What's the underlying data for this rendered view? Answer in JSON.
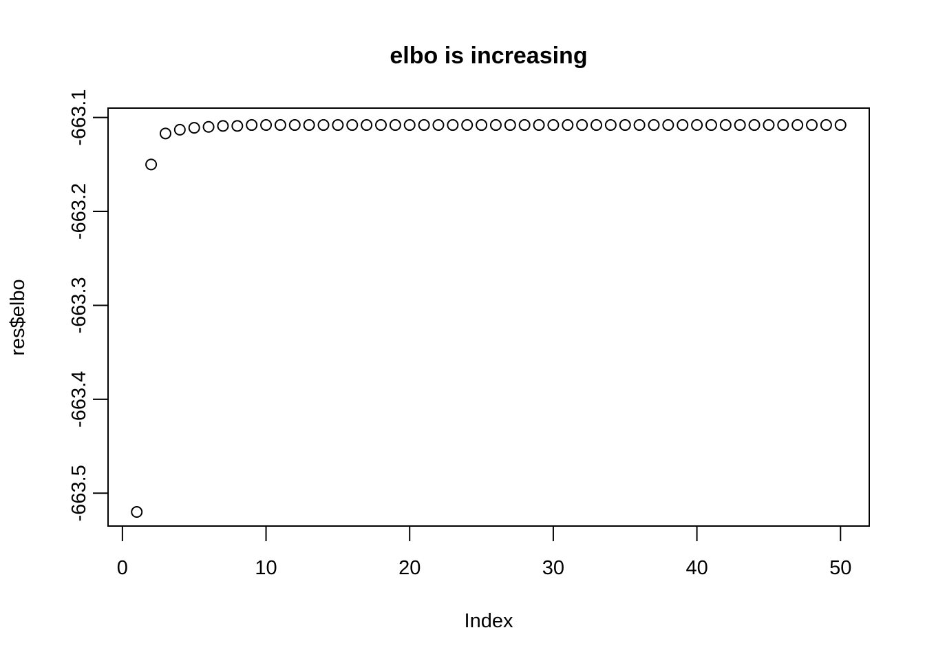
{
  "chart_data": {
    "type": "scatter",
    "title": "elbo is increasing",
    "xlabel": "Index",
    "ylabel": "res$elbo",
    "xlim": [
      -1,
      52
    ],
    "ylim": [
      -663.535,
      -663.09
    ],
    "x_ticks": [
      0,
      10,
      20,
      30,
      40,
      50
    ],
    "x_tick_labels": [
      "0",
      "10",
      "20",
      "30",
      "40",
      "50"
    ],
    "y_ticks": [
      -663.5,
      -663.4,
      -663.3,
      -663.2,
      -663.1
    ],
    "y_tick_labels": [
      "-663.5",
      "-663.4",
      "-663.3",
      "-663.2",
      "-663.1"
    ],
    "grid": false,
    "series": [
      {
        "marker": "open-circle",
        "color": "#000000",
        "x": [
          1,
          2,
          3,
          4,
          5,
          6,
          7,
          8,
          9,
          10,
          11,
          12,
          13,
          14,
          15,
          16,
          17,
          18,
          19,
          20,
          21,
          22,
          23,
          24,
          25,
          26,
          27,
          28,
          29,
          30,
          31,
          32,
          33,
          34,
          35,
          36,
          37,
          38,
          39,
          40,
          41,
          42,
          43,
          44,
          45,
          46,
          47,
          48,
          49,
          50
        ],
        "y": [
          -663.52,
          -663.15,
          -663.117,
          -663.113,
          -663.111,
          -663.11,
          -663.109,
          -663.109,
          -663.108,
          -663.108,
          -663.108,
          -663.108,
          -663.108,
          -663.108,
          -663.108,
          -663.108,
          -663.108,
          -663.108,
          -663.108,
          -663.108,
          -663.108,
          -663.108,
          -663.108,
          -663.108,
          -663.108,
          -663.108,
          -663.108,
          -663.108,
          -663.108,
          -663.108,
          -663.108,
          -663.108,
          -663.108,
          -663.108,
          -663.108,
          -663.108,
          -663.108,
          -663.108,
          -663.108,
          -663.108,
          -663.108,
          -663.108,
          -663.108,
          -663.108,
          -663.108,
          -663.108,
          -663.108,
          -663.108,
          -663.108,
          -663.108
        ]
      }
    ]
  }
}
